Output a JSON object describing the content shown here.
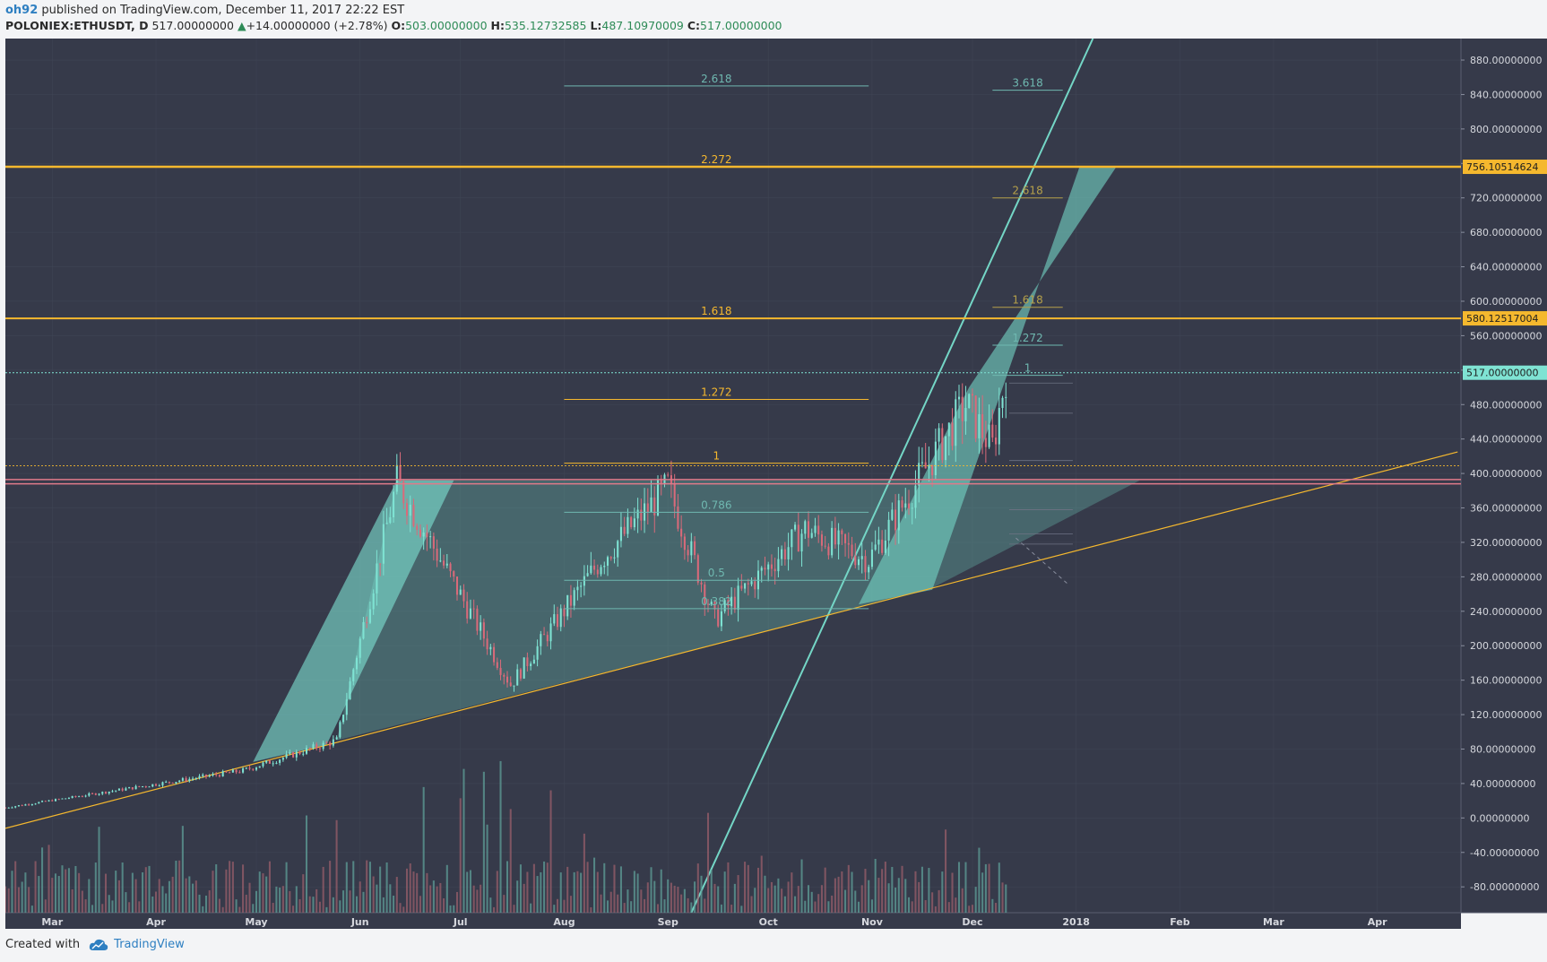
{
  "header": {
    "user": "oh92",
    "published_text": "published on TradingView.com, December 11, 2017 22:22 EST",
    "symbol": "POLONIEX:ETHUSDT, D",
    "last": "517.00000000",
    "change": "+14.00000000 (+2.78%)",
    "open_label": "O:",
    "open": "503.00000000",
    "high_label": "H:",
    "high": "535.12732585",
    "low_label": "L:",
    "low": "487.10970009",
    "close_label": "C:",
    "close": "517.00000000"
  },
  "footer": {
    "created_with": "Created with",
    "brand": "TradingView"
  },
  "colors": {
    "background": "#363a4a",
    "grid": "#3f4454",
    "up": "#7fe3d3",
    "down": "#d96a7a",
    "gold": "#f5b82e",
    "teal": "#74d6c6",
    "fib_teal": "#6fb8b0",
    "axis_text": "#d6d8de",
    "pink": "#e07a8a",
    "current": "#7fe3d3"
  },
  "chart_data": {
    "type": "candlestick",
    "x_axis": {
      "ticks": [
        {
          "date": "2017-03-01",
          "label": "Mar"
        },
        {
          "date": "2017-04-01",
          "label": "Apr"
        },
        {
          "date": "2017-05-01",
          "label": "May"
        },
        {
          "date": "2017-06-01",
          "label": "Jun"
        },
        {
          "date": "2017-07-01",
          "label": "Jul"
        },
        {
          "date": "2017-08-01",
          "label": "Aug"
        },
        {
          "date": "2017-09-01",
          "label": "Sep"
        },
        {
          "date": "2017-10-01",
          "label": "Oct"
        },
        {
          "date": "2017-11-01",
          "label": "Nov"
        },
        {
          "date": "2017-12-01",
          "label": "Dec"
        },
        {
          "date": "2018-01-01",
          "label": "2018"
        },
        {
          "date": "2018-02-01",
          "label": "Feb"
        },
        {
          "date": "2018-03-01",
          "label": "Mar"
        },
        {
          "date": "2018-04-01",
          "label": "Apr"
        }
      ],
      "range": [
        "2017-02-15",
        "2018-04-26"
      ]
    },
    "y_axis": {
      "range": [
        -110,
        905
      ],
      "ticks": [
        {
          "value": 880,
          "label": "880.00000000"
        },
        {
          "value": 840,
          "label": "840.00000000"
        },
        {
          "value": 800,
          "label": "800.00000000"
        },
        {
          "value": 760,
          "label": "760.00000000"
        },
        {
          "value": 720,
          "label": "720.00000000"
        },
        {
          "value": 680,
          "label": "680.00000000"
        },
        {
          "value": 640,
          "label": "640.00000000"
        },
        {
          "value": 600,
          "label": "600.00000000"
        },
        {
          "value": 560,
          "label": "560.00000000"
        },
        {
          "value": 520,
          "label": "520.00000000"
        },
        {
          "value": 480,
          "label": "480.00000000"
        },
        {
          "value": 440,
          "label": "440.00000000"
        },
        {
          "value": 400,
          "label": "400.00000000"
        },
        {
          "value": 360,
          "label": "360.00000000"
        },
        {
          "value": 320,
          "label": "320.00000000"
        },
        {
          "value": 280,
          "label": "280.00000000"
        },
        {
          "value": 240,
          "label": "240.00000000"
        },
        {
          "value": 200,
          "label": "200.00000000"
        },
        {
          "value": 160,
          "label": "160.00000000"
        },
        {
          "value": 120,
          "label": "120.00000000"
        },
        {
          "value": 80,
          "label": "80.00000000"
        },
        {
          "value": 40,
          "label": "40.00000000"
        },
        {
          "value": 0,
          "label": "0.00000000"
        },
        {
          "value": -40,
          "label": "-40.00000000"
        },
        {
          "value": -80,
          "label": "-80.00000000"
        }
      ],
      "price_tags": [
        {
          "value": 756.10514624,
          "label": "756.10514624",
          "kind": "gold"
        },
        {
          "value": 580.12517004,
          "label": "580.12517004",
          "kind": "gold"
        },
        {
          "value": 517,
          "label": "517.00000000",
          "kind": "current"
        }
      ]
    },
    "series": [
      {
        "start": "2017-02-15",
        "end": "2017-04-27",
        "from": 12,
        "to": 55
      },
      {
        "start": "2017-04-27",
        "end": "2017-05-25",
        "from": 55,
        "to": 90
      },
      {
        "start": "2017-05-25",
        "end": "2017-06-12",
        "from": 90,
        "to": 390
      },
      {
        "start": "2017-06-12",
        "end": "2017-07-16",
        "from": 390,
        "to": 155
      },
      {
        "start": "2017-07-16",
        "end": "2017-08-12",
        "from": 155,
        "to": 300
      },
      {
        "start": "2017-08-12",
        "end": "2017-09-01",
        "from": 300,
        "to": 385
      },
      {
        "start": "2017-09-01",
        "end": "2017-09-15",
        "from": 385,
        "to": 230
      },
      {
        "start": "2017-09-15",
        "end": "2017-10-12",
        "from": 230,
        "to": 335
      },
      {
        "start": "2017-10-12",
        "end": "2017-10-31",
        "from": 335,
        "to": 300
      },
      {
        "start": "2017-10-31",
        "end": "2017-11-29",
        "from": 300,
        "to": 480
      },
      {
        "start": "2017-11-29",
        "end": "2017-12-07",
        "from": 480,
        "to": 430
      },
      {
        "start": "2017-12-07",
        "end": "2017-12-11",
        "from": 430,
        "to": 517
      }
    ],
    "horizontal_lines": [
      {
        "value": 756.1,
        "color": "gold",
        "width": 2.5
      },
      {
        "value": 580.1,
        "color": "gold",
        "width": 2
      },
      {
        "value": 517,
        "color": "current",
        "dashed": true
      },
      {
        "value": 393,
        "color": "pink",
        "width": 1.5
      },
      {
        "value": 388,
        "color": "pink",
        "width": 1.5
      },
      {
        "value": 409,
        "color": "gold",
        "width": 0.8,
        "dashed": true
      }
    ],
    "fib_levels_main": [
      {
        "value": 850,
        "label": "2.618",
        "color": "teal"
      },
      {
        "value": 756.1,
        "label": "2.272",
        "color": "gold"
      },
      {
        "value": 580.1,
        "label": "1.618",
        "color": "gold"
      },
      {
        "value": 486,
        "label": "1.272",
        "color": "gold"
      },
      {
        "value": 412,
        "label": "1",
        "color": "gold"
      },
      {
        "value": 355,
        "label": "0.786",
        "color": "teal"
      },
      {
        "value": 276,
        "label": "0.5",
        "color": "teal"
      },
      {
        "value": 243,
        "label": "0.382",
        "color": "teal"
      }
    ],
    "fib_main_range": [
      "2017-08-01",
      "2017-10-31"
    ],
    "fib_levels_right": [
      {
        "value": 845,
        "label": "3.618",
        "color": "teal"
      },
      {
        "value": 720,
        "label": "2.618",
        "color": "gold_dim"
      },
      {
        "value": 593,
        "label": "1.618",
        "color": "gold_dim"
      },
      {
        "value": 549,
        "label": "1.272",
        "color": "teal"
      },
      {
        "value": 514,
        "label": "1",
        "color": "teal"
      }
    ],
    "fib_right_range": [
      "2017-12-07",
      "2017-12-28"
    ]
  }
}
